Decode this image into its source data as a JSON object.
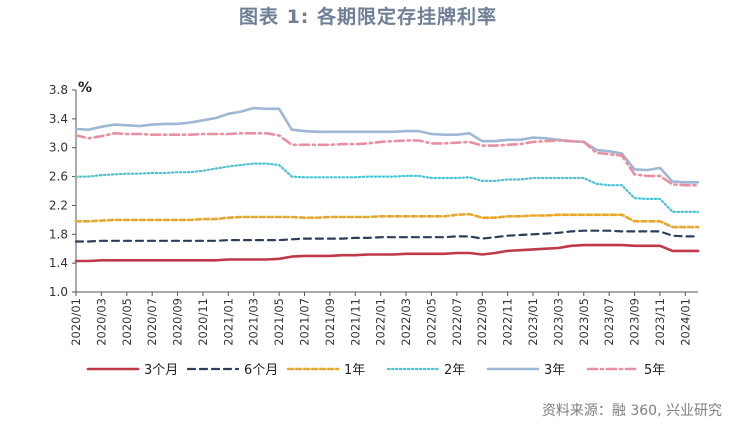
{
  "figure": {
    "title": "图表 1:   各期限定存挂牌利率",
    "source": "资料来源：融 360, 兴业研究"
  },
  "chart_data": {
    "type": "line",
    "unit_label": "%",
    "ylim": [
      1.0,
      3.8
    ],
    "yticks": [
      1.0,
      1.4,
      1.8,
      2.2,
      2.6,
      3.0,
      3.4,
      3.8
    ],
    "xtick_labels": [
      "2020/01",
      "2020/03",
      "2020/05",
      "2020/07",
      "2020/09",
      "2020/11",
      "2021/01",
      "2021/03",
      "2021/05",
      "2021/07",
      "2021/09",
      "2021/11",
      "2022/01",
      "2022/03",
      "2022/05",
      "2022/07",
      "2022/09",
      "2022/11",
      "2023/01",
      "2023/03",
      "2023/05",
      "2023/07",
      "2023/09",
      "2023/11",
      "2024/01"
    ],
    "x": [
      "2020/01",
      "2020/02",
      "2020/03",
      "2020/04",
      "2020/05",
      "2020/06",
      "2020/07",
      "2020/08",
      "2020/09",
      "2020/10",
      "2020/11",
      "2020/12",
      "2021/01",
      "2021/02",
      "2021/03",
      "2021/04",
      "2021/05",
      "2021/06",
      "2021/07",
      "2021/08",
      "2021/09",
      "2021/10",
      "2021/11",
      "2021/12",
      "2022/01",
      "2022/02",
      "2022/03",
      "2022/04",
      "2022/05",
      "2022/06",
      "2022/07",
      "2022/08",
      "2022/09",
      "2022/10",
      "2022/11",
      "2022/12",
      "2023/01",
      "2023/02",
      "2023/03",
      "2023/04",
      "2023/05",
      "2023/06",
      "2023/07",
      "2023/08",
      "2023/09",
      "2023/10",
      "2023/11",
      "2023/12",
      "2024/01",
      "2024/02"
    ],
    "grid": false,
    "legend_position": "bottom",
    "series": [
      {
        "name": "3个月",
        "color": "#c0394b",
        "style": "solid",
        "values": [
          1.43,
          1.43,
          1.44,
          1.44,
          1.44,
          1.44,
          1.44,
          1.44,
          1.44,
          1.44,
          1.44,
          1.44,
          1.45,
          1.45,
          1.45,
          1.45,
          1.46,
          1.49,
          1.5,
          1.5,
          1.5,
          1.51,
          1.51,
          1.52,
          1.52,
          1.52,
          1.53,
          1.53,
          1.53,
          1.53,
          1.54,
          1.54,
          1.52,
          1.54,
          1.57,
          1.58,
          1.59,
          1.6,
          1.61,
          1.64,
          1.65,
          1.65,
          1.65,
          1.65,
          1.64,
          1.64,
          1.64,
          1.57,
          1.57,
          1.57
        ]
      },
      {
        "name": "6个月",
        "color": "#2c3e5c",
        "style": "dash",
        "values": [
          1.7,
          1.7,
          1.71,
          1.71,
          1.71,
          1.71,
          1.71,
          1.71,
          1.71,
          1.71,
          1.71,
          1.71,
          1.72,
          1.72,
          1.72,
          1.72,
          1.72,
          1.73,
          1.74,
          1.74,
          1.74,
          1.74,
          1.75,
          1.75,
          1.76,
          1.76,
          1.76,
          1.76,
          1.76,
          1.76,
          1.77,
          1.77,
          1.74,
          1.76,
          1.78,
          1.79,
          1.8,
          1.81,
          1.82,
          1.84,
          1.85,
          1.85,
          1.85,
          1.84,
          1.84,
          1.84,
          1.84,
          1.78,
          1.77,
          1.77
        ]
      },
      {
        "name": "1年",
        "color": "#e8a82e",
        "style": "dash-orange",
        "values": [
          1.98,
          1.98,
          1.99,
          2.0,
          2.0,
          2.0,
          2.0,
          2.0,
          2.0,
          2.0,
          2.01,
          2.01,
          2.03,
          2.04,
          2.04,
          2.04,
          2.04,
          2.04,
          2.03,
          2.03,
          2.04,
          2.04,
          2.04,
          2.04,
          2.05,
          2.05,
          2.05,
          2.05,
          2.05,
          2.05,
          2.07,
          2.08,
          2.03,
          2.03,
          2.05,
          2.05,
          2.06,
          2.06,
          2.07,
          2.07,
          2.07,
          2.07,
          2.07,
          2.07,
          1.98,
          1.98,
          1.98,
          1.9,
          1.9,
          1.9
        ]
      },
      {
        "name": "2年",
        "color": "#4ec3d2",
        "style": "dot",
        "values": [
          2.6,
          2.6,
          2.62,
          2.63,
          2.64,
          2.64,
          2.65,
          2.65,
          2.66,
          2.66,
          2.68,
          2.71,
          2.74,
          2.76,
          2.78,
          2.78,
          2.76,
          2.6,
          2.59,
          2.59,
          2.59,
          2.59,
          2.59,
          2.6,
          2.6,
          2.6,
          2.61,
          2.61,
          2.58,
          2.58,
          2.58,
          2.59,
          2.54,
          2.54,
          2.56,
          2.56,
          2.58,
          2.58,
          2.58,
          2.58,
          2.58,
          2.5,
          2.48,
          2.48,
          2.3,
          2.29,
          2.29,
          2.11,
          2.11,
          2.11
        ]
      },
      {
        "name": "3年",
        "color": "#9db8d4",
        "style": "solid-thick",
        "values": [
          3.26,
          3.25,
          3.29,
          3.32,
          3.31,
          3.3,
          3.32,
          3.33,
          3.33,
          3.35,
          3.38,
          3.41,
          3.47,
          3.5,
          3.55,
          3.54,
          3.54,
          3.25,
          3.23,
          3.22,
          3.22,
          3.22,
          3.22,
          3.22,
          3.22,
          3.22,
          3.23,
          3.23,
          3.19,
          3.18,
          3.18,
          3.2,
          3.09,
          3.09,
          3.11,
          3.11,
          3.14,
          3.13,
          3.11,
          3.09,
          3.08,
          2.97,
          2.95,
          2.92,
          2.7,
          2.69,
          2.72,
          2.53,
          2.52,
          2.52
        ]
      },
      {
        "name": "5年",
        "color": "#e88fa2",
        "style": "dashdot",
        "values": [
          3.17,
          3.13,
          3.16,
          3.2,
          3.19,
          3.19,
          3.18,
          3.18,
          3.18,
          3.18,
          3.19,
          3.19,
          3.19,
          3.2,
          3.2,
          3.2,
          3.17,
          3.04,
          3.04,
          3.04,
          3.04,
          3.05,
          3.05,
          3.06,
          3.08,
          3.09,
          3.1,
          3.1,
          3.06,
          3.06,
          3.07,
          3.08,
          3.03,
          3.03,
          3.04,
          3.05,
          3.08,
          3.09,
          3.1,
          3.09,
          3.08,
          2.93,
          2.91,
          2.89,
          2.63,
          2.61,
          2.61,
          2.49,
          2.48,
          2.48
        ]
      }
    ]
  }
}
